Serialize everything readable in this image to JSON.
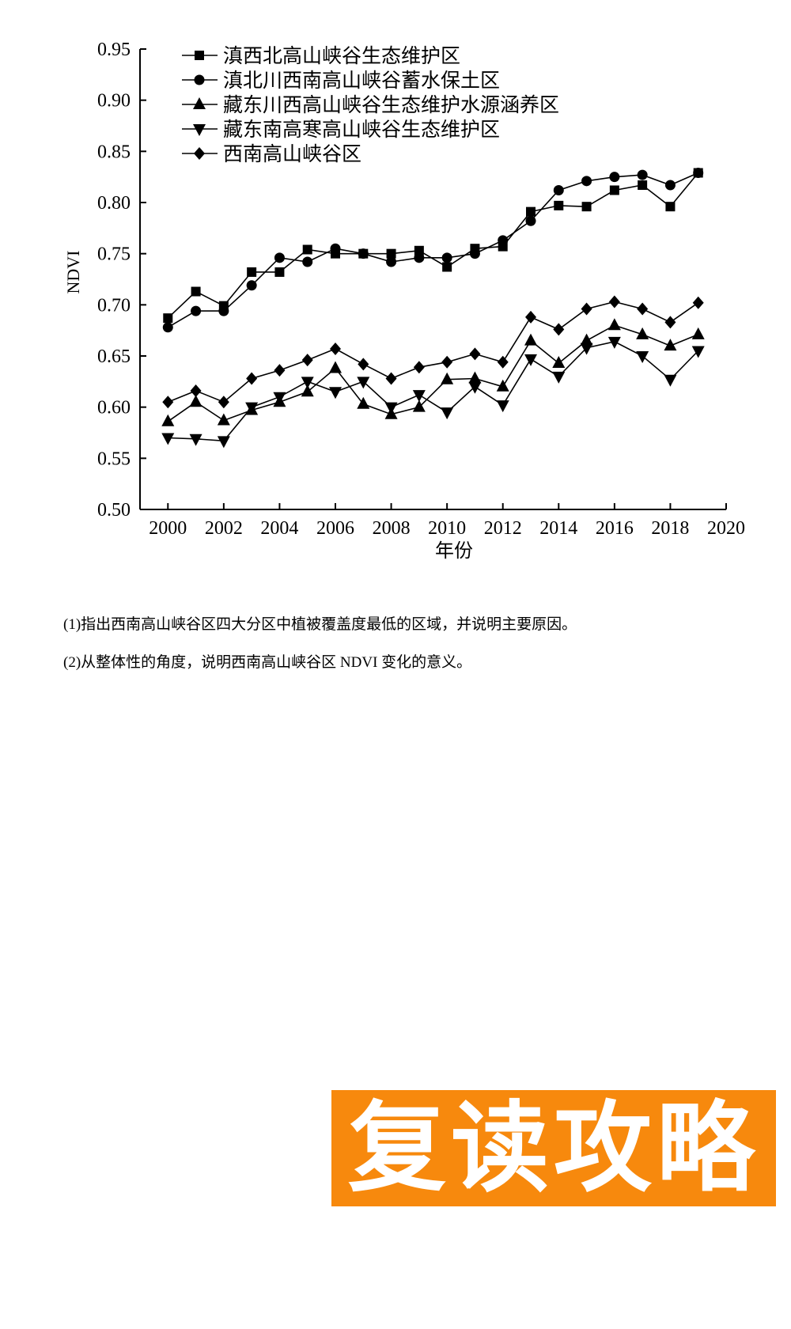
{
  "chart_data": {
    "type": "line",
    "title": "",
    "xlabel": "年份",
    "ylabel": "NDVI",
    "xlim": [
      1999,
      2020
    ],
    "ylim": [
      0.5,
      0.95
    ],
    "xticks": [
      "2000",
      "2002",
      "2004",
      "2006",
      "2008",
      "2010",
      "2012",
      "2014",
      "2016",
      "2018",
      "2020"
    ],
    "yticks": [
      "0.50",
      "0.55",
      "0.60",
      "0.65",
      "0.70",
      "0.75",
      "0.80",
      "0.85",
      "0.90",
      "0.95"
    ],
    "legend_position": "top-left",
    "grid": false,
    "x": [
      2000,
      2001,
      2002,
      2003,
      2004,
      2005,
      2006,
      2007,
      2008,
      2009,
      2010,
      2011,
      2012,
      2013,
      2014,
      2015,
      2016,
      2017,
      2018,
      2019
    ],
    "series": [
      {
        "name": "滇西北高山峡谷生态维护区",
        "marker": "square",
        "values": [
          0.687,
          0.713,
          0.699,
          0.732,
          0.732,
          0.754,
          0.75,
          0.75,
          0.75,
          0.753,
          0.737,
          0.755,
          0.757,
          0.791,
          0.797,
          0.796,
          0.812,
          0.817,
          0.796,
          0.829
        ]
      },
      {
        "name": "滇北川西南高山峡谷蓄水保土区",
        "marker": "circle",
        "values": [
          0.678,
          0.694,
          0.694,
          0.719,
          0.746,
          0.742,
          0.755,
          0.75,
          0.742,
          0.746,
          0.746,
          0.75,
          0.763,
          0.782,
          0.812,
          0.821,
          0.825,
          0.827,
          0.817,
          0.829
        ]
      },
      {
        "name": "藏东川西高山峡谷生态维护水源涵养区",
        "marker": "triangle-up",
        "values": [
          0.586,
          0.605,
          0.587,
          0.597,
          0.605,
          0.615,
          0.638,
          0.603,
          0.593,
          0.6,
          0.627,
          0.628,
          0.62,
          0.665,
          0.643,
          0.665,
          0.68,
          0.671,
          0.66,
          0.671
        ]
      },
      {
        "name": "藏东南高寒高山峡谷生态维护区",
        "marker": "triangle-down",
        "values": [
          0.57,
          0.569,
          0.567,
          0.6,
          0.61,
          0.625,
          0.615,
          0.625,
          0.6,
          0.612,
          0.595,
          0.62,
          0.602,
          0.647,
          0.63,
          0.658,
          0.664,
          0.65,
          0.627,
          0.655
        ]
      },
      {
        "name": "西南高山峡谷区",
        "marker": "diamond",
        "values": [
          0.605,
          0.616,
          0.605,
          0.628,
          0.636,
          0.646,
          0.657,
          0.642,
          0.628,
          0.639,
          0.644,
          0.652,
          0.644,
          0.688,
          0.676,
          0.696,
          0.703,
          0.696,
          0.683,
          0.702
        ]
      }
    ]
  },
  "questions": {
    "q1": "(1)指出西南高山峡谷区四大分区中植被覆盖度最低的区域，并说明主要原因。",
    "q2": "(2)从整体性的角度，说明西南高山峡谷区 NDVI 变化的意义。"
  },
  "brand": {
    "text": "复读攻略",
    "bg_color": "#f7890d",
    "text_color": "#ffffff"
  }
}
